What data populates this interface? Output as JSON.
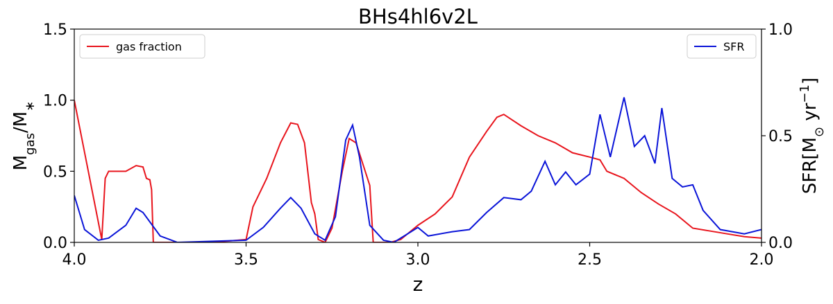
{
  "chart_data": {
    "type": "line",
    "title": "BHs4hl6v2L",
    "xlabel": "z",
    "ylabel": [
      "M",
      "gas",
      "/M",
      "∗"
    ],
    "y2label": [
      "SFR[M",
      "⊙",
      " yr",
      "−1",
      "]"
    ],
    "xlim": [
      4.0,
      2.0
    ],
    "xticks": [
      {
        "value": 4.0,
        "label": "4.0"
      },
      {
        "value": 3.5,
        "label": "3.5"
      },
      {
        "value": 3.0,
        "label": "3.0"
      },
      {
        "value": 2.5,
        "label": "2.5"
      },
      {
        "value": 2.0,
        "label": "2.0"
      }
    ],
    "ylim": [
      0,
      1.5
    ],
    "yticks": [
      {
        "value": 0,
        "label": "0.0"
      },
      {
        "value": 0.5,
        "label": "0.5"
      },
      {
        "value": 1.0,
        "label": "1.0"
      },
      {
        "value": 1.5,
        "label": "1.5"
      }
    ],
    "y2lim": [
      0,
      1.0
    ],
    "y2ticks": [
      {
        "value": 0,
        "label": "0.0"
      },
      {
        "value": 0.5,
        "label": "0.5"
      },
      {
        "value": 1.0,
        "label": "1.0"
      }
    ],
    "series": [
      {
        "name": "gas fraction",
        "color": "#e8141c",
        "legend": "upper left",
        "x": [
          4.0,
          3.92,
          3.91,
          3.9,
          3.85,
          3.82,
          3.8,
          3.79,
          3.78,
          3.775,
          3.77,
          3.6,
          3.55,
          3.5,
          3.48,
          3.44,
          3.4,
          3.37,
          3.35,
          3.33,
          3.31,
          3.3,
          3.29,
          3.27,
          3.25,
          3.22,
          3.2,
          3.18,
          3.16,
          3.14,
          3.13,
          3.08,
          3.05,
          3.0,
          2.95,
          2.9,
          2.85,
          2.8,
          2.77,
          2.75,
          2.7,
          2.65,
          2.6,
          2.55,
          2.5,
          2.47,
          2.45,
          2.4,
          2.35,
          2.3,
          2.25,
          2.2,
          2.15,
          2.1,
          2.05,
          2.0
        ],
        "values": [
          1.0,
          0.02,
          0.45,
          0.5,
          0.5,
          0.54,
          0.53,
          0.45,
          0.44,
          0.37,
          0.0,
          0.0,
          0.01,
          0.02,
          0.25,
          0.45,
          0.7,
          0.84,
          0.83,
          0.7,
          0.28,
          0.2,
          0.02,
          0.0,
          0.1,
          0.5,
          0.73,
          0.7,
          0.55,
          0.4,
          0.0,
          0.0,
          0.02,
          0.12,
          0.2,
          0.32,
          0.6,
          0.78,
          0.88,
          0.9,
          0.82,
          0.75,
          0.7,
          0.63,
          0.6,
          0.58,
          0.5,
          0.45,
          0.35,
          0.27,
          0.2,
          0.1,
          0.08,
          0.06,
          0.04,
          0.03
        ]
      },
      {
        "name": "SFR",
        "color": "#0a14d8",
        "legend": "upper right",
        "axis": "y2",
        "x": [
          4.0,
          3.97,
          3.93,
          3.9,
          3.85,
          3.82,
          3.8,
          3.75,
          3.7,
          3.5,
          3.45,
          3.4,
          3.37,
          3.34,
          3.3,
          3.27,
          3.24,
          3.21,
          3.19,
          3.17,
          3.14,
          3.1,
          3.07,
          3.02,
          3.0,
          2.97,
          2.9,
          2.85,
          2.8,
          2.75,
          2.7,
          2.67,
          2.63,
          2.6,
          2.57,
          2.54,
          2.5,
          2.47,
          2.44,
          2.4,
          2.37,
          2.34,
          2.31,
          2.29,
          2.26,
          2.23,
          2.2,
          2.17,
          2.12,
          2.05,
          2.0
        ],
        "values": [
          0.22,
          0.06,
          0.01,
          0.02,
          0.08,
          0.16,
          0.14,
          0.03,
          0.0,
          0.01,
          0.07,
          0.16,
          0.21,
          0.16,
          0.04,
          0.01,
          0.12,
          0.48,
          0.55,
          0.4,
          0.08,
          0.01,
          0.0,
          0.05,
          0.07,
          0.03,
          0.05,
          0.06,
          0.14,
          0.21,
          0.2,
          0.24,
          0.38,
          0.27,
          0.33,
          0.27,
          0.32,
          0.6,
          0.4,
          0.68,
          0.45,
          0.5,
          0.37,
          0.63,
          0.3,
          0.26,
          0.27,
          0.15,
          0.06,
          0.04,
          0.06
        ]
      }
    ]
  }
}
